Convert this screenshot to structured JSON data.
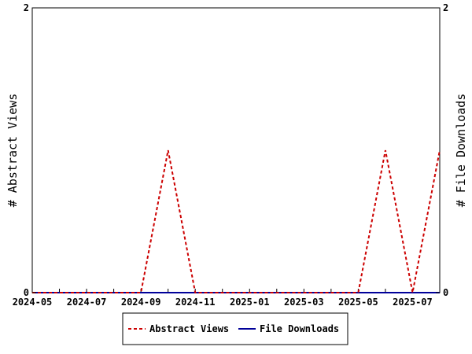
{
  "chart_data": {
    "type": "line",
    "x_ticks": [
      "2024-05",
      "2024-07",
      "2024-09",
      "2024-11",
      "2025-01",
      "2025-03",
      "2025-05",
      "2025-07"
    ],
    "x_months": [
      "2024-05",
      "2024-06",
      "2024-07",
      "2024-08",
      "2024-09",
      "2024-10",
      "2024-11",
      "2024-12",
      "2025-01",
      "2025-02",
      "2025-03",
      "2025-04",
      "2025-05",
      "2025-06",
      "2025-07",
      "2025-08"
    ],
    "y_left": {
      "label": "# Abstract Views",
      "ticks": [
        "0",
        "2"
      ],
      "ylim": [
        0,
        2
      ]
    },
    "y_right": {
      "label": "# File Downloads",
      "ticks": [
        "0",
        "2"
      ],
      "ylim": [
        0,
        2
      ]
    },
    "series": [
      {
        "name": "Abstract Views",
        "color": "#cc0000",
        "style": "dashed",
        "axis": "left",
        "values": [
          0,
          0,
          0,
          0,
          0,
          1,
          0,
          0,
          0,
          0,
          0,
          0,
          0,
          1,
          0,
          1
        ]
      },
      {
        "name": "File Downloads",
        "color": "#000099",
        "style": "solid",
        "axis": "right",
        "values": [
          0,
          0,
          0,
          0,
          0,
          0,
          0,
          0,
          0,
          0,
          0,
          0,
          0,
          0,
          0,
          0
        ]
      }
    ],
    "legend_position": "bottom"
  }
}
